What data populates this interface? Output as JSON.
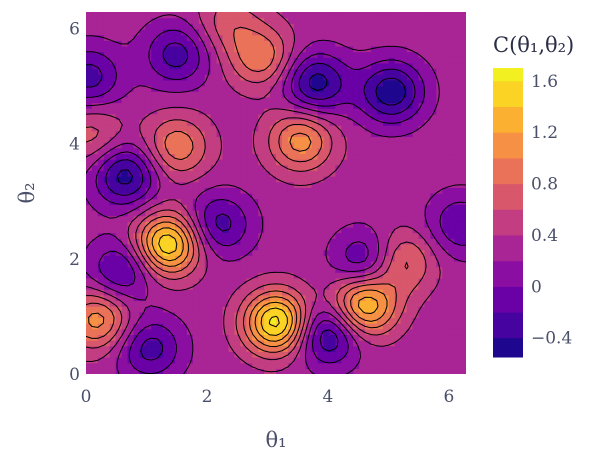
{
  "chart_data": {
    "type": "contour",
    "xlabel": "θ₁",
    "ylabel": "θ₂",
    "xlim": [
      0,
      6.283
    ],
    "ylim": [
      0,
      6.283
    ],
    "x_ticks": [
      "0",
      "2",
      "4",
      "6"
    ],
    "y_ticks": [
      "0",
      "2",
      "4",
      "6"
    ],
    "colorbar": {
      "title": "C(θ₁,θ₂)",
      "range": [
        -0.55,
        1.7
      ],
      "ticks": [
        "−0.4",
        "0",
        "0.4",
        "0.8",
        "1.2",
        "1.6"
      ],
      "contour_step": 0.2,
      "colorscale": [
        "#0d0887",
        "#46039f",
        "#7201a8",
        "#9c179e",
        "#bd3786",
        "#d8576b",
        "#ed7953",
        "#fb9f3a",
        "#fdca26",
        "#f0f921"
      ]
    },
    "peaks": [
      {
        "theta1": 1.35,
        "theta2": 2.25,
        "value": 1.6
      },
      {
        "theta1": 3.15,
        "theta2": 0.9,
        "value": 1.7
      },
      {
        "theta1": 4.6,
        "theta2": 1.2,
        "value": 1.45
      },
      {
        "theta1": 3.55,
        "theta2": 4.05,
        "value": 1.1
      },
      {
        "theta1": 1.5,
        "theta2": 3.95,
        "value": 0.95
      },
      {
        "theta1": 0.2,
        "theta2": 0.95,
        "value": 1.1
      },
      {
        "theta1": 2.9,
        "theta2": 5.5,
        "value": 0.95
      },
      {
        "theta1": 2.35,
        "theta2": 6.1,
        "value": 0.7
      },
      {
        "theta1": 5.2,
        "theta2": 1.95,
        "value": 0.95
      },
      {
        "theta1": 0.1,
        "theta2": 4.15,
        "value": 0.7
      }
    ],
    "troughs": [
      {
        "theta1": 0.65,
        "theta2": 3.45,
        "value": -0.5
      },
      {
        "theta1": 4.0,
        "theta2": 0.7,
        "value": -0.5
      },
      {
        "theta1": 2.2,
        "theta2": 2.6,
        "value": -0.3
      },
      {
        "theta1": 3.8,
        "theta2": 5.05,
        "value": -0.5
      },
      {
        "theta1": 5.05,
        "theta2": 4.9,
        "value": -0.55
      },
      {
        "theta1": 0.05,
        "theta2": 5.15,
        "value": -0.3
      },
      {
        "theta1": 1.5,
        "theta2": 5.55,
        "value": -0.3
      },
      {
        "theta1": 4.65,
        "theta2": 1.95,
        "value": -0.35
      },
      {
        "theta1": 6.2,
        "theta2": 2.6,
        "value": -0.2
      },
      {
        "theta1": 1.05,
        "theta2": 0.45,
        "value": -0.3
      },
      {
        "theta1": 0.6,
        "theta2": 1.8,
        "value": -0.3
      }
    ]
  }
}
